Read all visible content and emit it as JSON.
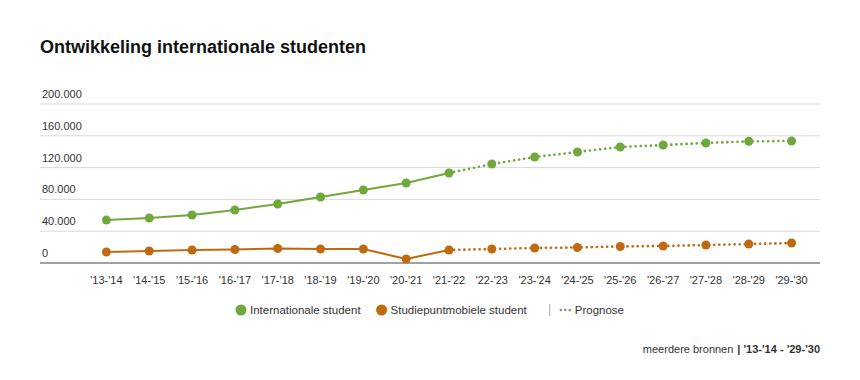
{
  "chart_data": {
    "type": "line",
    "title": "Ontwikkeling internationale studenten",
    "categories": [
      "'13-'14",
      "'14-'15",
      "'15-'16",
      "'16-'17",
      "'17-'18",
      "'18-'19",
      "'19-'20",
      "'20-'21",
      "'21-'22",
      "'22-'23",
      "'23-'24",
      "'24-'25",
      "'25-'26",
      "'26-'27",
      "'27-'28",
      "'28-'29",
      "'29-'30"
    ],
    "series": [
      {
        "name": "Internationale student",
        "color": "#70a83b",
        "marker": "circle",
        "line_style": "solid",
        "values": [
          54000,
          56600,
          60400,
          66700,
          74200,
          83000,
          91800,
          100600,
          113200,
          124500,
          133300,
          139600,
          145900,
          148400,
          151000,
          153000,
          153500
        ]
      },
      {
        "name": "Studiepuntmobiele student",
        "color": "#bf6a0f",
        "marker": "circle",
        "line_style": "solid",
        "values": [
          13800,
          15100,
          16400,
          17000,
          18200,
          17600,
          17600,
          5000,
          16400,
          17600,
          18900,
          19500,
          20800,
          21400,
          22600,
          23900,
          25200
        ]
      }
    ],
    "forecast": {
      "label": "Prognose",
      "start": "'21-'22",
      "line_style": "dotted"
    },
    "ylim": [
      0,
      200000
    ],
    "yticks": [
      0,
      {
        "value": 40000,
        "label": "40.000"
      },
      {
        "value": 80000,
        "label": "80.000"
      },
      {
        "value": 120000,
        "label": "120.000"
      },
      {
        "value": 160000,
        "label": "160.000"
      },
      {
        "value": 200000,
        "label": "200.000"
      }
    ],
    "grid": true,
    "legend": "bottom",
    "source": "meerdere bronnen",
    "period": "| '13-'14 - '29-'30"
  }
}
